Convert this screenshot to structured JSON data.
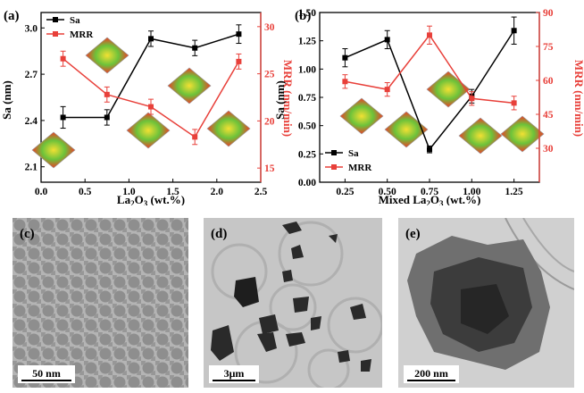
{
  "colors": {
    "black": "#000000",
    "red": "#e8403a"
  },
  "chart_data": [
    {
      "panel": "(a)",
      "type": "line",
      "xlabel": "La2O3 (wt.%)",
      "xlabel_parts": {
        "base": "La",
        "sub1": "2",
        "mid": "O",
        "sub2": "3",
        "tail": " (wt.%)"
      },
      "ylabel": "Sa (nm)",
      "y2label": "MRR (nm/min)",
      "xlim": [
        0.0,
        2.5
      ],
      "ylim": [
        2.0,
        3.1
      ],
      "y2lim": [
        13.5,
        31.5
      ],
      "xticks": [
        "0.0",
        "0.5",
        "1.0",
        "1.5",
        "2.0",
        "2.5"
      ],
      "yticks": [
        "2.1",
        "2.4",
        "2.7",
        "3.0"
      ],
      "y2ticks": [
        "15",
        "20",
        "25",
        "30"
      ],
      "legend": "top-left",
      "series": [
        {
          "name": "Sa",
          "axis": "left",
          "color": "#000000",
          "x": [
            0.25,
            0.75,
            1.25,
            1.75,
            2.25
          ],
          "y": [
            2.42,
            2.42,
            2.93,
            2.87,
            2.96
          ],
          "err": [
            0.07,
            0.05,
            0.05,
            0.05,
            0.06
          ]
        },
        {
          "name": "MRR",
          "axis": "right",
          "color": "#e8403a",
          "x": [
            0.25,
            0.75,
            1.25,
            1.75,
            2.25
          ],
          "y": [
            26.6,
            22.8,
            21.5,
            18.3,
            26.3
          ],
          "err": [
            0.8,
            0.8,
            0.8,
            0.8,
            0.8
          ]
        }
      ]
    },
    {
      "panel": "(b)",
      "type": "line",
      "xlabel": "Mixed La2O3 (wt.%)",
      "xlabel_parts": {
        "base": "Mixed La",
        "sub1": "2",
        "mid": "O",
        "sub2": "3",
        "tail": " (wt.%)"
      },
      "ylabel": "Sa (nm)",
      "y2label": "MRR (nm/min)",
      "xlim": [
        0.1,
        1.4
      ],
      "ylim": [
        0.0,
        1.5
      ],
      "y2lim": [
        15,
        90
      ],
      "xticks": [
        "0.25",
        "0.50",
        "0.75",
        "1.00",
        "1.25"
      ],
      "yticks": [
        "0.00",
        "0.25",
        "0.50",
        "0.75",
        "1.00",
        "1.25",
        "1.50"
      ],
      "y2ticks": [
        "30",
        "45",
        "60",
        "75",
        "90"
      ],
      "legend": "bottom-left",
      "series": [
        {
          "name": "Sa",
          "axis": "left",
          "color": "#000000",
          "x": [
            0.25,
            0.5,
            0.75,
            1.0,
            1.25
          ],
          "y": [
            1.1,
            1.26,
            0.29,
            0.76,
            1.34
          ],
          "err": [
            0.08,
            0.08,
            0.03,
            0.06,
            0.12
          ]
        },
        {
          "name": "MRR",
          "axis": "right",
          "color": "#e8403a",
          "x": [
            0.25,
            0.5,
            0.75,
            1.0,
            1.25
          ],
          "y": [
            59.5,
            56.0,
            80.0,
            52.0,
            50.0
          ],
          "err": [
            3,
            3,
            4,
            3,
            3
          ]
        }
      ]
    }
  ],
  "images": [
    {
      "panel": "(c)",
      "scale_bar": "50 nm"
    },
    {
      "panel": "(d)",
      "scale_bar": "3μm"
    },
    {
      "panel": "(e)",
      "scale_bar": "200 nm"
    }
  ]
}
